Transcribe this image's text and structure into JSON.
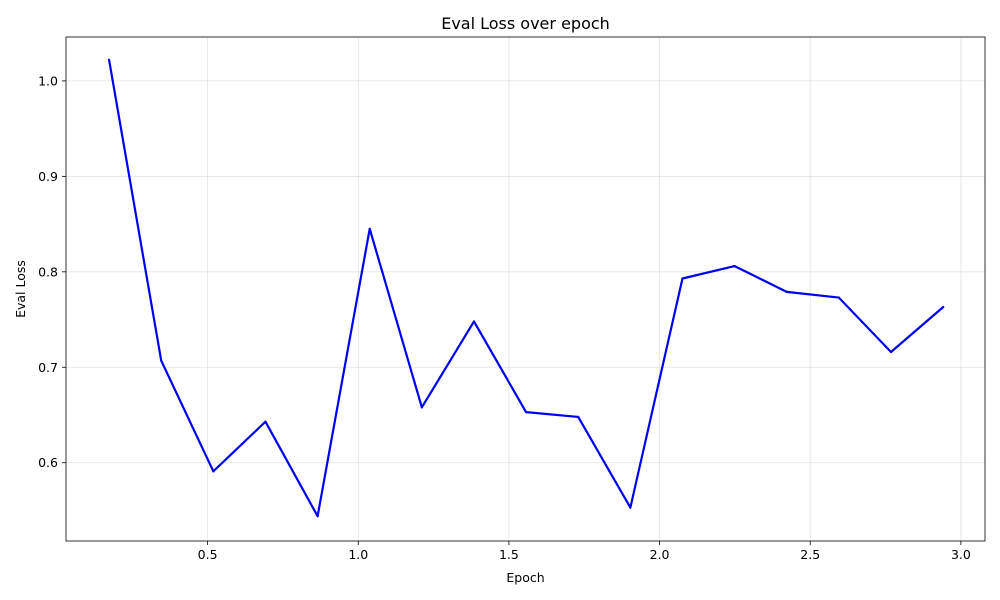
{
  "chart_data": {
    "type": "line",
    "title": "Eval Loss over epoch",
    "xlabel": "Epoch",
    "ylabel": "Eval Loss",
    "xlim": [
      0.03,
      3.08
    ],
    "ylim": [
      0.518,
      1.046
    ],
    "xticks": [
      0.5,
      1.0,
      1.5,
      2.0,
      2.5,
      3.0
    ],
    "xtick_labels": [
      "0.5",
      "1.0",
      "1.5",
      "2.0",
      "2.5",
      "3.0"
    ],
    "yticks": [
      0.6,
      0.7,
      0.8,
      0.9,
      1.0
    ],
    "ytick_labels": [
      "0.6",
      "0.7",
      "0.8",
      "0.9",
      "1.0"
    ],
    "grid": true,
    "legend": false,
    "line_color": "#0000ee",
    "series": [
      {
        "x": [
          0.173,
          0.346,
          0.519,
          0.692,
          0.865,
          1.038,
          1.211,
          1.384,
          1.557,
          1.73,
          1.903,
          2.076,
          2.249,
          2.422,
          2.595,
          2.768,
          2.941
        ],
        "values": [
          1.022,
          0.707,
          0.591,
          0.643,
          0.544,
          0.845,
          0.658,
          0.748,
          0.653,
          0.648,
          0.553,
          0.793,
          0.806,
          0.779,
          0.773,
          0.716,
          0.763
        ]
      }
    ]
  }
}
